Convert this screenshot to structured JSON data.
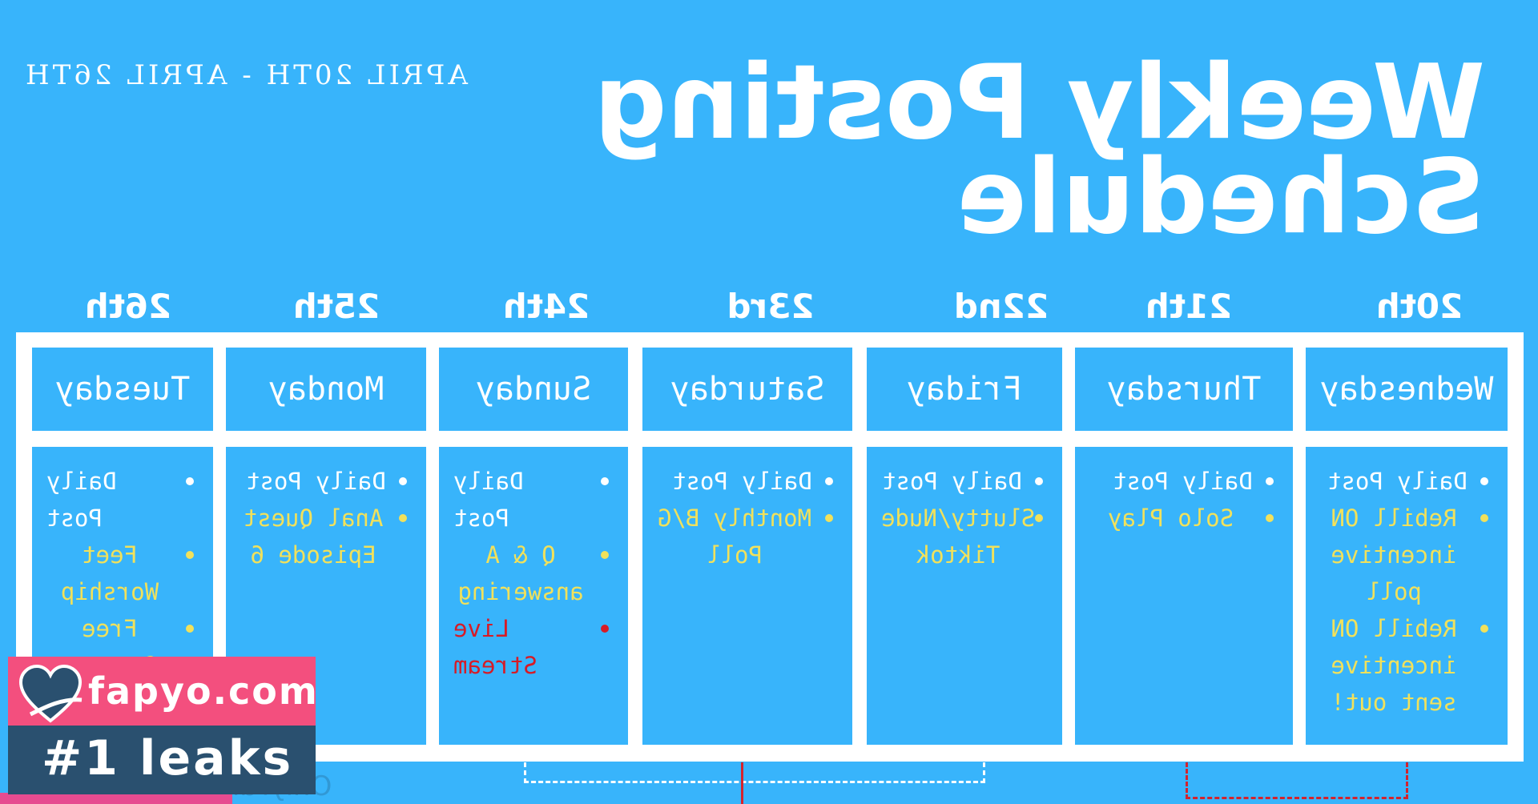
{
  "header": {
    "subtitle": "APRIL 20TH - APRIL 26TH",
    "title_line1": "Weekly Posting",
    "title_line2": "Schedule"
  },
  "colors": {
    "background": "#38b4fb",
    "accent_yellow": "#f1e15b",
    "accent_red": "#d71b26",
    "badge_pink": "#f34f7e",
    "badge_navy": "#2a506f"
  },
  "days": [
    {
      "date": "20th",
      "day": "Wednesday",
      "items": [
        {
          "text": "Daily Post",
          "color": "white"
        },
        {
          "text": "Rebill ON incentive poll",
          "color": "yellow"
        },
        {
          "text": "Rebill ON incentive sent out!",
          "color": "yellow"
        }
      ]
    },
    {
      "date": "21th",
      "day": "Thursday",
      "items": [
        {
          "text": "Daily Post",
          "color": "white"
        },
        {
          "text": "Solo Play",
          "color": "yellow"
        }
      ]
    },
    {
      "date": "22nd",
      "day": "Friday",
      "items": [
        {
          "text": "Daily Post",
          "color": "white"
        },
        {
          "text": "Slutty/Nude Tiktok",
          "color": "yellow"
        }
      ]
    },
    {
      "date": "23rd",
      "day": "Saturday",
      "items": [
        {
          "text": "Daily Post",
          "color": "white"
        },
        {
          "text": "Monthly B/G Poll",
          "color": "yellow"
        }
      ]
    },
    {
      "date": "24th",
      "day": "Sunday",
      "items": [
        {
          "text": "Daily Post",
          "color": "white"
        },
        {
          "text": "Q & A answering",
          "color": "yellow"
        },
        {
          "text": "Live Stream",
          "color": "red"
        }
      ]
    },
    {
      "date": "25th",
      "day": "Monday",
      "items": [
        {
          "text": "Daily Post",
          "color": "white"
        },
        {
          "text": "Anal Quest Episode 6",
          "color": "yellow"
        }
      ]
    },
    {
      "date": "26th",
      "day": "Tuesday",
      "items": [
        {
          "text": "Daily Post",
          "color": "white"
        },
        {
          "text": "Feet Worship",
          "color": "yellow"
        },
        {
          "text": "Free Contest",
          "color": "yellow"
        }
      ]
    }
  ],
  "overlay": {
    "site": "fapyo.com",
    "tagline": "#1 leaks",
    "watermark": "OnlyFans"
  }
}
